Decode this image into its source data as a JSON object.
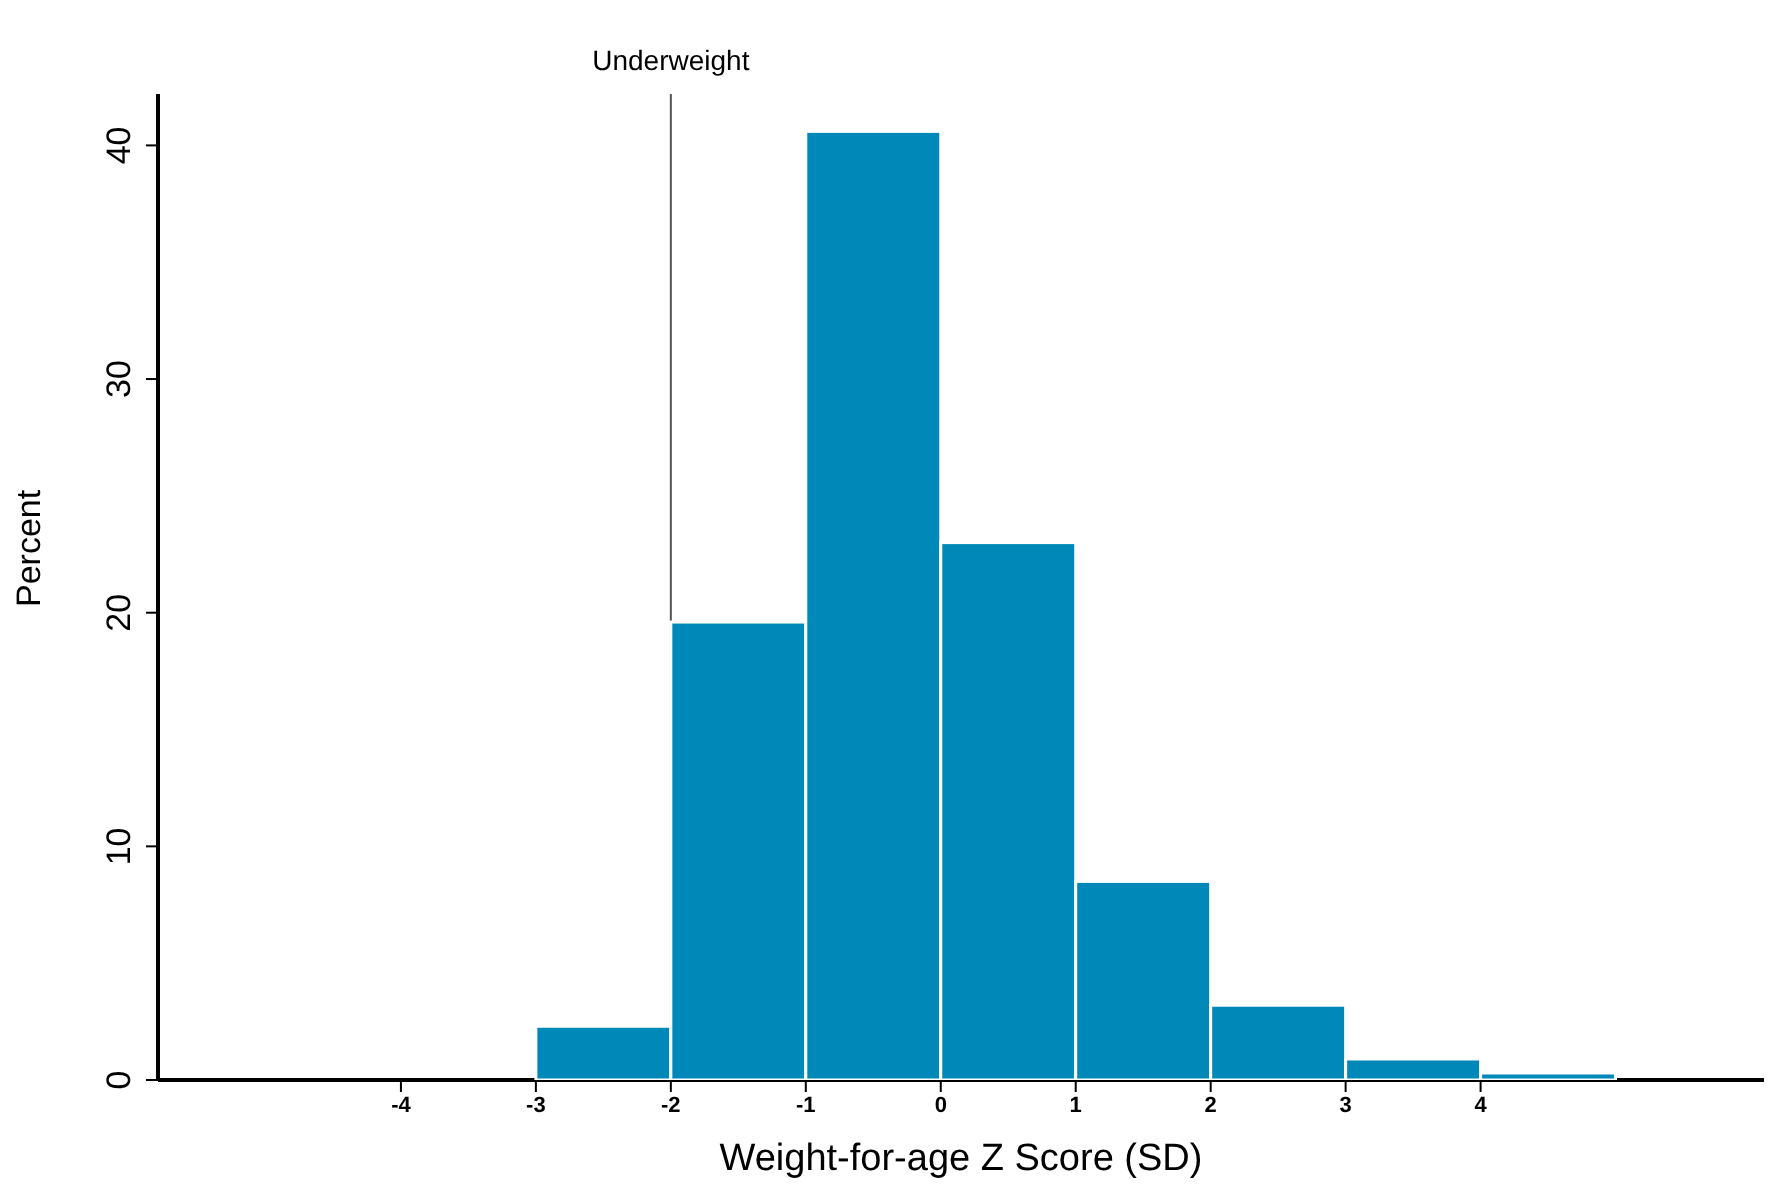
{
  "chart_data": {
    "type": "histogram",
    "xlabel": "Weight-for-age Z Score (SD)",
    "ylabel": "Percent",
    "bins": [
      -3,
      -2,
      -1,
      0,
      1,
      2,
      3,
      4,
      5
    ],
    "values": [
      2.3,
      19.6,
      40.6,
      23.0,
      8.5,
      3.2,
      0.9,
      0.3
    ],
    "color": "#0088b9",
    "xlim": [
      -5.8,
      6.1
    ],
    "xticks": [
      -4,
      -3,
      -2,
      -1,
      0,
      1,
      2,
      3,
      4
    ],
    "ylim": [
      0,
      42.2
    ],
    "yticks": [
      0,
      10,
      20,
      30,
      40
    ],
    "ref_lines": [
      {
        "axis": "x",
        "value": -2,
        "label": "Underweight",
        "color": "#555555"
      }
    ],
    "grid": false,
    "legend": false
  }
}
